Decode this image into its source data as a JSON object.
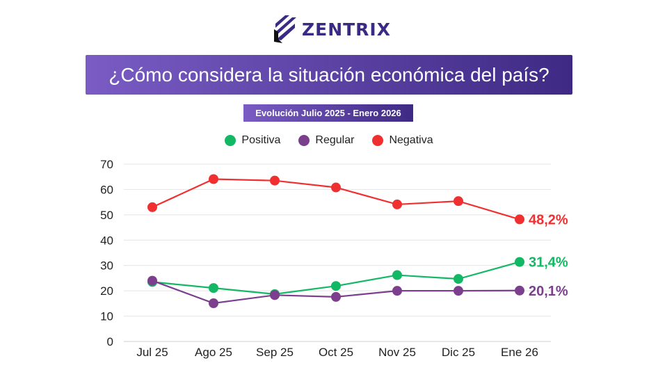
{
  "logo": {
    "text": "ZENTRIX"
  },
  "chart_data": {
    "type": "line",
    "title": "¿Cómo considera la situación económica del país?",
    "subtitle": "Evolución Julio 2025 - Enero 2026",
    "categories": [
      "Jul 25",
      "Ago 25",
      "Sep 25",
      "Oct 25",
      "Nov 25",
      "Dic 25",
      "Ene 26"
    ],
    "ylim": [
      0,
      70
    ],
    "yticks": [
      0,
      10,
      20,
      30,
      40,
      50,
      60,
      70
    ],
    "grid": true,
    "legend_placement": "top",
    "series": [
      {
        "name": "Positiva",
        "color": "#12b864",
        "values": [
          23.5,
          21.1,
          18.7,
          21.9,
          26.2,
          24.7,
          31.4
        ],
        "end_label": "31,4%"
      },
      {
        "name": "Regular",
        "color": "#7b3f8e",
        "values": [
          24.0,
          15.1,
          18.3,
          17.6,
          20.0,
          20.0,
          20.1
        ],
        "end_label": "20,1%"
      },
      {
        "name": "Negativa",
        "color": "#f03030",
        "values": [
          53.0,
          64.1,
          63.5,
          60.8,
          54.1,
          55.4,
          48.2
        ],
        "end_label": "48,2%"
      }
    ]
  }
}
